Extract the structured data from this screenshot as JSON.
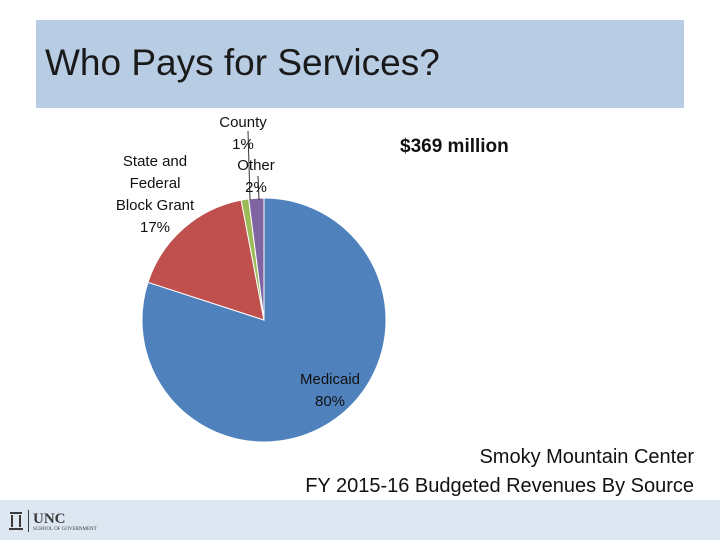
{
  "slide": {
    "title": "Who Pays for Services?",
    "total_label": "$369 million",
    "caption_line1": "Smoky Mountain Center",
    "caption_line2": "FY 2015-16 Budgeted Revenues By Source",
    "logo_text": "UNC SCHOOL OF GOVERNMENT"
  },
  "chart_data": {
    "type": "pie",
    "slices": [
      {
        "label_lines": [
          "Medicaid",
          "80%"
        ],
        "value": 80,
        "color": "#4f81bd"
      },
      {
        "label_lines": [
          "State and",
          "Federal",
          "Block Grant",
          "17%"
        ],
        "value": 17,
        "color": "#c0504d"
      },
      {
        "label_lines": [
          "County",
          "1%"
        ],
        "value": 1,
        "color": "#9bbb59"
      },
      {
        "label_lines": [
          "Other",
          "2%"
        ],
        "value": 2,
        "color": "#8064a2"
      }
    ]
  },
  "colors": {
    "title_band": "#b8cce4",
    "footer_band": "#dde7f2"
  }
}
